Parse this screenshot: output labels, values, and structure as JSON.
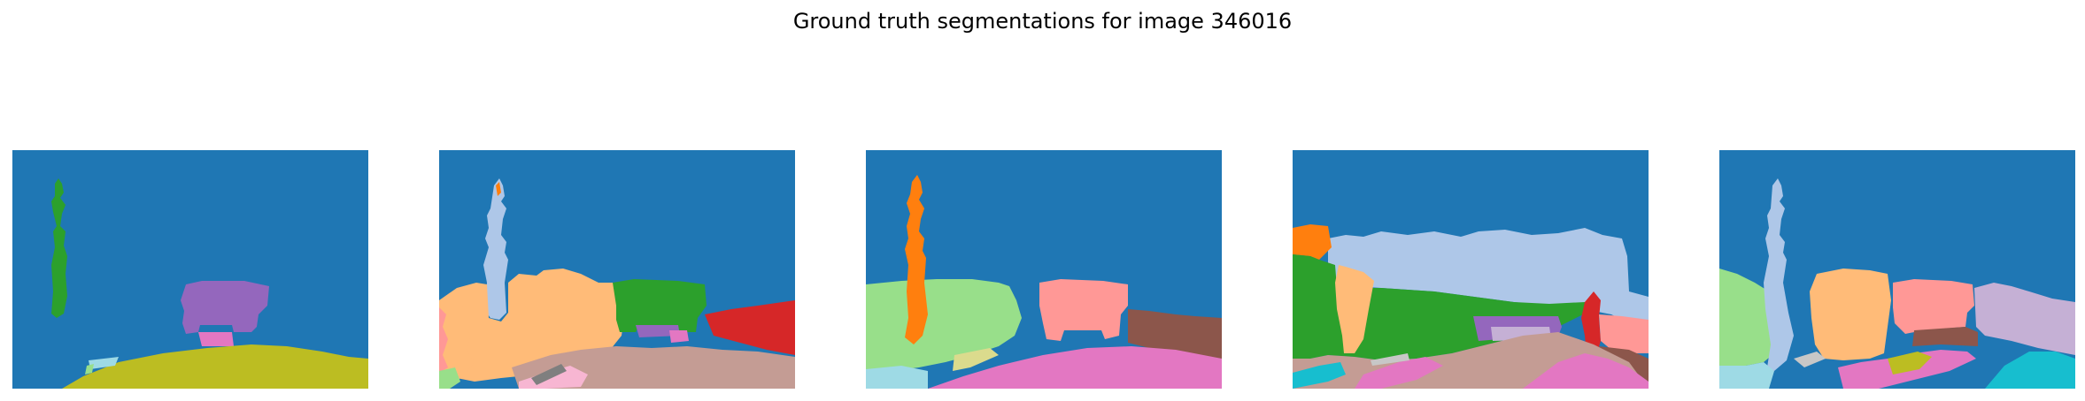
{
  "figure": {
    "title": "Ground truth segmentations for image 346016"
  },
  "palette": {
    "blue": "#1f77b4",
    "light_blue": "#aec7e8",
    "orange": "#ff7f0e",
    "light_orange": "#ffbb78",
    "green": "#2ca02c",
    "light_green": "#98df8a",
    "red": "#d62728",
    "salmon": "#ff9896",
    "purple": "#9467bd",
    "lavender": "#c5b0d5",
    "brown": "#8c564b",
    "tan": "#c49c94",
    "pink": "#e377c2",
    "light_pink": "#f7b6d2",
    "gray": "#7f7f7f",
    "light_gray": "#c7c7c7",
    "olive": "#bcbd22",
    "khaki": "#dbdb8d",
    "cyan": "#17becf",
    "light_cyan": "#9edae5"
  },
  "panels": [
    {
      "id": "segmentation-1"
    },
    {
      "id": "segmentation-2"
    },
    {
      "id": "segmentation-3"
    },
    {
      "id": "segmentation-4"
    },
    {
      "id": "segmentation-5"
    }
  ]
}
